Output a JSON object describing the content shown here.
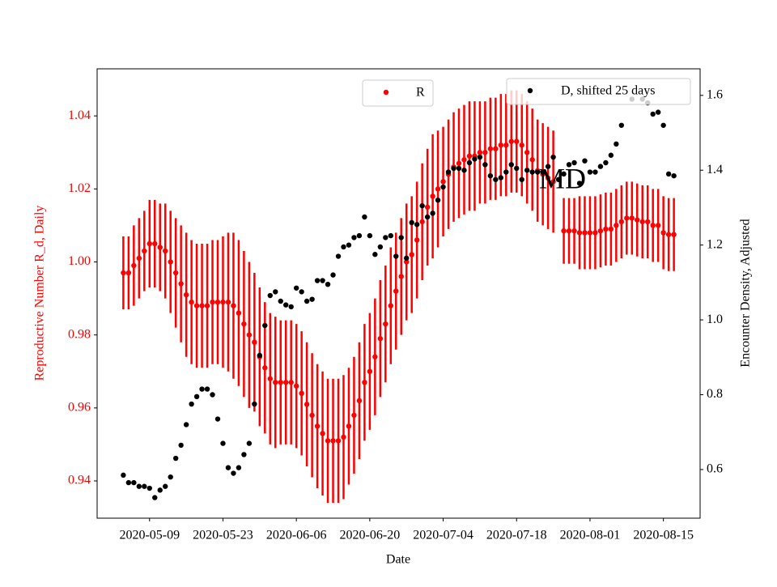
{
  "chart_data": {
    "type": "scatter",
    "xlabel": "Date",
    "ylabel": "Reproductive Number R_d, Daily",
    "y2label": "Encounter Density, Adjusted",
    "annotation": "MD",
    "legend": "upper right",
    "x": [
      "2020-05-04",
      "2020-05-05",
      "2020-05-06",
      "2020-05-07",
      "2020-05-08",
      "2020-05-09",
      "2020-05-10",
      "2020-05-11",
      "2020-05-12",
      "2020-05-13",
      "2020-05-14",
      "2020-05-15",
      "2020-05-16",
      "2020-05-17",
      "2020-05-18",
      "2020-05-19",
      "2020-05-20",
      "2020-05-21",
      "2020-05-22",
      "2020-05-23",
      "2020-05-24",
      "2020-05-25",
      "2020-05-26",
      "2020-05-27",
      "2020-05-28",
      "2020-05-29",
      "2020-05-30",
      "2020-05-31",
      "2020-06-01",
      "2020-06-02",
      "2020-06-03",
      "2020-06-04",
      "2020-06-05",
      "2020-06-06",
      "2020-06-07",
      "2020-06-08",
      "2020-06-09",
      "2020-06-10",
      "2020-06-11",
      "2020-06-12",
      "2020-06-13",
      "2020-06-14",
      "2020-06-15",
      "2020-06-16",
      "2020-06-17",
      "2020-06-18",
      "2020-06-19",
      "2020-06-20",
      "2020-06-21",
      "2020-06-22",
      "2020-06-23",
      "2020-06-24",
      "2020-06-25",
      "2020-06-26",
      "2020-06-27",
      "2020-06-28",
      "2020-06-29",
      "2020-06-30",
      "2020-07-01",
      "2020-07-02",
      "2020-07-03",
      "2020-07-04",
      "2020-07-05",
      "2020-07-06",
      "2020-07-07",
      "2020-07-08",
      "2020-07-09",
      "2020-07-10",
      "2020-07-11",
      "2020-07-12",
      "2020-07-13",
      "2020-07-14",
      "2020-07-15",
      "2020-07-16",
      "2020-07-17",
      "2020-07-18",
      "2020-07-19",
      "2020-07-20",
      "2020-07-21",
      "2020-07-22",
      "2020-07-23",
      "2020-07-24",
      "2020-07-25",
      "2020-07-26",
      "2020-07-27",
      "2020-07-28",
      "2020-07-29",
      "2020-07-30",
      "2020-07-31",
      "2020-08-01",
      "2020-08-02",
      "2020-08-03",
      "2020-08-04",
      "2020-08-05",
      "2020-08-06",
      "2020-08-07",
      "2020-08-08",
      "2020-08-09",
      "2020-08-10",
      "2020-08-11",
      "2020-08-12",
      "2020-08-13",
      "2020-08-14",
      "2020-08-15",
      "2020-08-16",
      "2020-08-17"
    ],
    "xlim": [
      "2020-04-29",
      "2020-08-22"
    ],
    "xticks": [
      "2020-05-09",
      "2020-05-23",
      "2020-06-06",
      "2020-06-20",
      "2020-07-04",
      "2020-07-18",
      "2020-08-01",
      "2020-08-15"
    ],
    "ylim": [
      0.9298,
      1.0529
    ],
    "yticks": [
      0.94,
      0.96,
      0.98,
      {
        "value": 1,
        "label": "1.00"
      },
      1.02,
      1.04
    ],
    "y2lim": [
      0.47,
      1.671
    ],
    "y2ticks": [
      0.6,
      0.8,
      {
        "value": 1,
        "label": "1.0"
      },
      1.2,
      1.4,
      1.6
    ],
    "series": [
      {
        "name": "R",
        "color": "#ff0000",
        "values": [
          0.997,
          0.997,
          0.999,
          1.001,
          1.003,
          1.005,
          1.005,
          1.004,
          1.003,
          1.0,
          0.997,
          0.994,
          0.991,
          0.989,
          0.988,
          0.988,
          0.988,
          0.989,
          0.989,
          0.989,
          0.989,
          0.988,
          0.986,
          0.983,
          0.98,
          0.978,
          0.974,
          0.971,
          0.968,
          0.967,
          0.967,
          0.967,
          0.967,
          0.966,
          0.964,
          0.961,
          0.958,
          0.955,
          0.953,
          0.951,
          0.951,
          0.951,
          0.952,
          0.955,
          0.958,
          0.962,
          0.967,
          0.97,
          0.974,
          0.979,
          0.983,
          0.988,
          0.992,
          0.996,
          1.0,
          1.002,
          1.006,
          1.011,
          1.015,
          1.018,
          1.02,
          1.022,
          1.024,
          1.026,
          1.027,
          1.028,
          1.029,
          1.029,
          1.03,
          1.03,
          1.031,
          1.031,
          1.032,
          1.032,
          1.033,
          1.033,
          1.032,
          1.03,
          1.028,
          1.025,
          1.024,
          1.023,
          1.022,
          null,
          1.0085,
          1.0085,
          1.0085,
          1.008,
          1.008,
          1.008,
          1.008,
          1.0085,
          1.009,
          1.009,
          1.01,
          1.011,
          1.012,
          1.012,
          1.0115,
          1.011,
          1.011,
          1.01,
          1.01,
          1.008,
          1.0075,
          1.0075
        ],
        "errors": [
          0.01,
          0.01,
          0.011,
          0.011,
          0.011,
          0.012,
          0.012,
          0.012,
          0.013,
          0.014,
          0.015,
          0.016,
          0.017,
          0.017,
          0.017,
          0.017,
          0.017,
          0.017,
          0.017,
          0.018,
          0.019,
          0.02,
          0.02,
          0.02,
          0.02,
          0.019,
          0.019,
          0.018,
          0.018,
          0.018,
          0.017,
          0.017,
          0.017,
          0.017,
          0.017,
          0.017,
          0.017,
          0.017,
          0.017,
          0.017,
          0.017,
          0.017,
          0.017,
          0.016,
          0.016,
          0.016,
          0.016,
          0.016,
          0.016,
          0.016,
          0.016,
          0.016,
          0.016,
          0.016,
          0.016,
          0.016,
          0.016,
          0.016,
          0.016,
          0.017,
          0.016,
          0.015,
          0.015,
          0.015,
          0.015,
          0.015,
          0.015,
          0.015,
          0.014,
          0.014,
          0.014,
          0.014,
          0.014,
          0.014,
          0.014,
          0.014,
          0.014,
          0.014,
          0.014,
          0.014,
          0.014,
          0.014,
          0.014,
          null,
          0.009,
          0.009,
          0.009,
          0.01,
          0.01,
          0.01,
          0.01,
          0.01,
          0.01,
          0.01,
          0.01,
          0.01,
          0.01,
          0.01,
          0.01,
          0.01,
          0.01,
          0.01,
          0.01,
          0.01,
          0.01,
          0.01
        ]
      },
      {
        "name": "D, shifted 25 days",
        "color": "#000000",
        "axis": "y2",
        "values": [
          0.585,
          0.565,
          0.565,
          0.555,
          0.555,
          0.55,
          0.525,
          0.545,
          0.555,
          0.58,
          0.63,
          0.665,
          0.72,
          0.775,
          0.795,
          0.815,
          0.815,
          0.8,
          0.735,
          0.67,
          0.605,
          0.59,
          0.605,
          0.64,
          0.67,
          0.775,
          0.905,
          0.985,
          1.065,
          1.075,
          1.05,
          1.04,
          1.035,
          1.085,
          1.075,
          1.05,
          1.055,
          1.105,
          1.105,
          1.095,
          1.12,
          1.17,
          1.195,
          1.2,
          1.22,
          1.225,
          1.275,
          1.225,
          1.175,
          1.195,
          1.22,
          1.225,
          1.17,
          1.22,
          1.165,
          1.26,
          1.255,
          1.305,
          1.275,
          1.285,
          1.32,
          1.355,
          1.395,
          1.405,
          1.405,
          1.4,
          1.42,
          1.43,
          1.435,
          1.415,
          1.385,
          1.375,
          1.38,
          1.395,
          1.415,
          1.405,
          1.375,
          1.4,
          1.395,
          1.395,
          1.395,
          1.41,
          1.435,
          1.375,
          1.39,
          1.415,
          1.42,
          1.365,
          1.425,
          1.395,
          1.395,
          1.41,
          1.42,
          1.44,
          1.47,
          1.52,
          null,
          1.59,
          null,
          1.59,
          1.58,
          1.55,
          1.555,
          1.52,
          1.39,
          1.385
        ]
      }
    ]
  }
}
